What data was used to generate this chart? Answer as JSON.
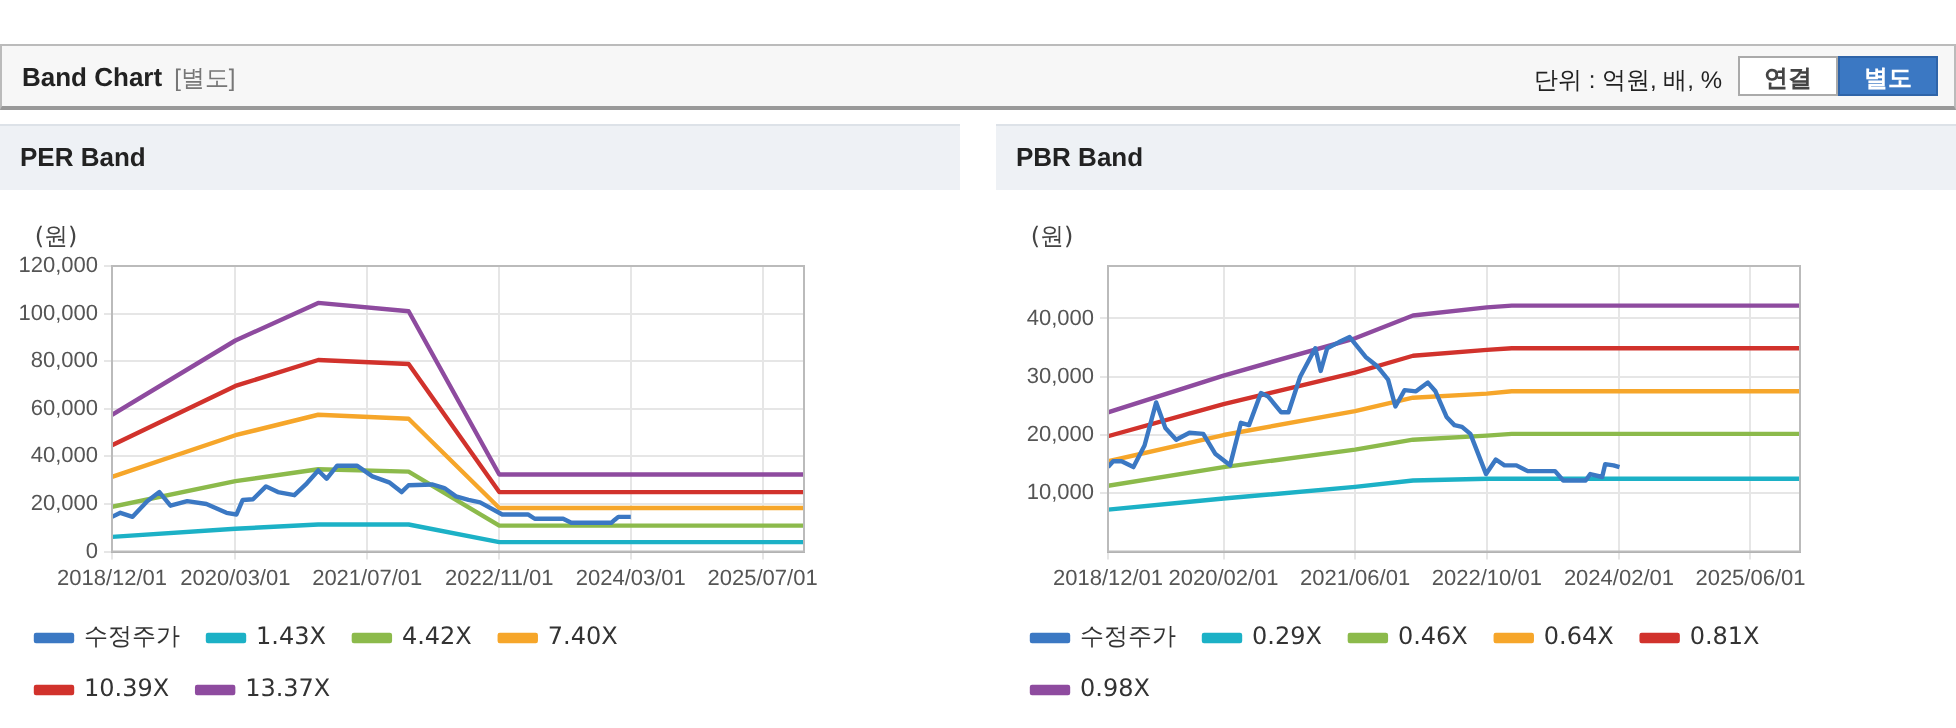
{
  "chart_data": [
    {
      "type": "other",
      "title": "Band Chart",
      "subtitle": "[별도]",
      "annotations": [
        "단위 : 억원, 배, %",
        "연결",
        "별도"
      ]
    },
    {
      "type": "line",
      "title": "PER Band",
      "ylabel": "(원)",
      "xlim": [
        "2018-12-01",
        "2025-12-01"
      ],
      "ylim": [
        0,
        120000
      ],
      "xticks": [
        {
          "value": "2018-12-01",
          "label": "2018/12/01"
        },
        {
          "value": "2020-03-01",
          "label": "2020/03/01"
        },
        {
          "value": "2021-07-01",
          "label": "2021/07/01"
        },
        {
          "value": "2022-11-01",
          "label": "2022/11/01"
        },
        {
          "value": "2024-03-01",
          "label": "2024/03/01"
        },
        {
          "value": "2025-07-01",
          "label": "2025/07/01"
        }
      ],
      "yticks": [
        {
          "value": 0,
          "label": "0"
        },
        {
          "value": 20000,
          "label": "20,000"
        },
        {
          "value": 40000,
          "label": "40,000"
        },
        {
          "value": 60000,
          "label": "60,000"
        },
        {
          "value": 80000,
          "label": "80,000"
        },
        {
          "value": 100000,
          "label": "100,000"
        },
        {
          "value": 120000,
          "label": "120,000"
        }
      ],
      "grid": true,
      "legend": "bottom",
      "marker": "none",
      "line_style": "solid",
      "series": [
        {
          "name": "수정주가",
          "color": "#3b78c3",
          "x": [
            "2018-12-01",
            "2019-01-01",
            "2019-02-15",
            "2019-04-10",
            "2019-05-25",
            "2019-07-05",
            "2019-09-05",
            "2019-11-15",
            "2020-01-28",
            "2020-03-05",
            "2020-03-28",
            "2020-05-05",
            "2020-06-22",
            "2020-08-05",
            "2020-10-05",
            "2020-11-20",
            "2021-01-01",
            "2021-02-01",
            "2021-03-12",
            "2021-05-25",
            "2021-07-20",
            "2021-09-20",
            "2021-11-05",
            "2021-12-01",
            "2022-02-28",
            "2022-04-12",
            "2022-05-25",
            "2022-07-10",
            "2022-08-22",
            "2022-11-12",
            "2023-02-15",
            "2023-03-12",
            "2023-06-25",
            "2023-07-25",
            "2023-12-20",
            "2024-01-01",
            "2024-01-15",
            "2024-03-01"
          ],
          "values": [
            14600,
            16300,
            14600,
            21200,
            25000,
            19300,
            21200,
            20000,
            16300,
            15600,
            21700,
            22000,
            27400,
            25000,
            23700,
            28700,
            34100,
            30600,
            36100,
            36100,
            31600,
            29100,
            25000,
            27900,
            28200,
            26700,
            23200,
            21700,
            20700,
            15600,
            15600,
            13800,
            13800,
            12100,
            12100,
            13300,
            14600,
            14600
          ]
        },
        {
          "name": "1.43X",
          "color": "#1cb1c6",
          "x": [
            "2018-12-01",
            "2020-03-01",
            "2021-01-01",
            "2021-12-01",
            "2022-11-01",
            "2025-12-01"
          ],
          "values": [
            6200,
            9600,
            11400,
            11400,
            4000,
            4000
          ]
        },
        {
          "name": "4.42X",
          "color": "#8cba4b",
          "x": [
            "2018-12-01",
            "2020-03-01",
            "2021-01-01",
            "2021-12-01",
            "2022-11-01",
            "2025-12-01"
          ],
          "values": [
            18800,
            29600,
            34600,
            33600,
            10900,
            10900
          ]
        },
        {
          "name": "7.40X",
          "color": "#f6a62a",
          "x": [
            "2018-12-01",
            "2020-03-01",
            "2021-01-01",
            "2021-12-01",
            "2022-11-01",
            "2025-12-01"
          ],
          "values": [
            31400,
            48900,
            57500,
            55800,
            18300,
            18300
          ]
        },
        {
          "name": "10.39X",
          "color": "#d1322c",
          "x": [
            "2018-12-01",
            "2020-03-01",
            "2021-01-01",
            "2021-12-01",
            "2022-11-01",
            "2025-12-01"
          ],
          "values": [
            44700,
            69600,
            80500,
            78800,
            25000,
            25000
          ]
        },
        {
          "name": "13.37X",
          "color": "#8e4b9f",
          "x": [
            "2018-12-01",
            "2020-03-01",
            "2021-01-01",
            "2021-12-01",
            "2022-11-01",
            "2025-12-01"
          ],
          "values": [
            57500,
            88700,
            104500,
            101000,
            32400,
            32400
          ]
        }
      ]
    },
    {
      "type": "line",
      "title": "PBR Band",
      "ylabel": "(원)",
      "xlim": [
        "2018-12-01",
        "2025-12-01"
      ],
      "ylim": [
        0,
        49000
      ],
      "xticks": [
        {
          "value": "2018-12-01",
          "label": "2018/12/01"
        },
        {
          "value": "2020-02-01",
          "label": "2020/02/01"
        },
        {
          "value": "2021-06-01",
          "label": "2021/06/01"
        },
        {
          "value": "2022-10-01",
          "label": "2022/10/01"
        },
        {
          "value": "2024-02-01",
          "label": "2024/02/01"
        },
        {
          "value": "2025-06-01",
          "label": "2025/06/01"
        }
      ],
      "yticks": [
        {
          "value": 10000,
          "label": "10,000"
        },
        {
          "value": 20000,
          "label": "20,000"
        },
        {
          "value": 30000,
          "label": "30,000"
        },
        {
          "value": 40000,
          "label": "40,000"
        }
      ],
      "grid": true,
      "legend": "bottom",
      "marker": "none",
      "line_style": "solid",
      "series": [
        {
          "name": "수정주가",
          "color": "#3b78c3",
          "x": [
            "2018-12-01",
            "2018-12-20",
            "2019-01-20",
            "2019-03-05",
            "2019-04-15",
            "2019-05-28",
            "2019-07-01",
            "2019-08-10",
            "2019-09-28",
            "2019-11-18",
            "2020-01-01",
            "2020-02-25",
            "2020-04-05",
            "2020-05-05",
            "2020-06-18",
            "2020-07-15",
            "2020-09-01",
            "2020-09-28",
            "2020-11-10",
            "2021-01-05",
            "2021-01-25",
            "2021-02-18",
            "2021-04-01",
            "2021-05-12",
            "2021-07-10",
            "2021-08-20",
            "2021-10-01",
            "2021-10-28",
            "2021-12-01",
            "2022-01-12",
            "2022-02-25",
            "2022-03-25",
            "2022-05-05",
            "2022-06-03",
            "2022-07-01",
            "2022-08-01",
            "2022-09-28",
            "2022-11-03",
            "2022-12-05",
            "2023-01-18",
            "2023-03-01",
            "2023-06-10",
            "2023-07-10",
            "2023-10-01",
            "2023-10-18",
            "2023-12-01",
            "2023-12-12",
            "2024-01-12",
            "2024-02-03"
          ],
          "values": [
            14500,
            15500,
            15500,
            14500,
            18200,
            25600,
            21200,
            19200,
            20400,
            20200,
            16800,
            14800,
            22100,
            21700,
            27200,
            26600,
            23900,
            23900,
            30000,
            34900,
            31000,
            34900,
            35900,
            36800,
            33400,
            31900,
            29500,
            24900,
            27700,
            27500,
            29000,
            27500,
            23100,
            21700,
            21400,
            20200,
            13300,
            15800,
            14800,
            14800,
            13800,
            13800,
            12200,
            12200,
            13300,
            12800,
            15000,
            14800,
            14500
          ]
        },
        {
          "name": "0.29X",
          "color": "#1cb1c6",
          "x": [
            "2018-12-01",
            "2020-02-01",
            "2021-06-01",
            "2022-01-01",
            "2022-10-01",
            "2023-01-01",
            "2025-12-01"
          ],
          "values": [
            7200,
            9100,
            11100,
            12200,
            12500,
            12500,
            12500
          ]
        },
        {
          "name": "0.46X",
          "color": "#8cba4b",
          "x": [
            "2018-12-01",
            "2020-02-01",
            "2021-06-01",
            "2022-01-01",
            "2022-10-01",
            "2023-01-01",
            "2025-12-01"
          ],
          "values": [
            11300,
            14500,
            17500,
            19200,
            19900,
            20200,
            20200
          ]
        },
        {
          "name": "0.64X",
          "color": "#f6a62a",
          "x": [
            "2018-12-01",
            "2020-02-01",
            "2021-06-01",
            "2022-01-01",
            "2022-10-01",
            "2023-01-01",
            "2025-12-01"
          ],
          "values": [
            15500,
            20000,
            24100,
            26400,
            27100,
            27500,
            27500
          ]
        },
        {
          "name": "0.81X",
          "color": "#d1322c",
          "x": [
            "2018-12-01",
            "2020-02-01",
            "2021-06-01",
            "2022-01-01",
            "2022-10-01",
            "2023-01-01",
            "2025-12-01"
          ],
          "values": [
            19800,
            25300,
            30700,
            33600,
            34600,
            34900,
            34900
          ]
        },
        {
          "name": "0.98X",
          "color": "#8e4b9f",
          "x": [
            "2018-12-01",
            "2020-02-01",
            "2021-06-01",
            "2022-01-01",
            "2022-10-01",
            "2023-01-01",
            "2025-12-01"
          ],
          "values": [
            23900,
            30200,
            36600,
            40500,
            41900,
            42200,
            42200
          ]
        }
      ]
    }
  ]
}
